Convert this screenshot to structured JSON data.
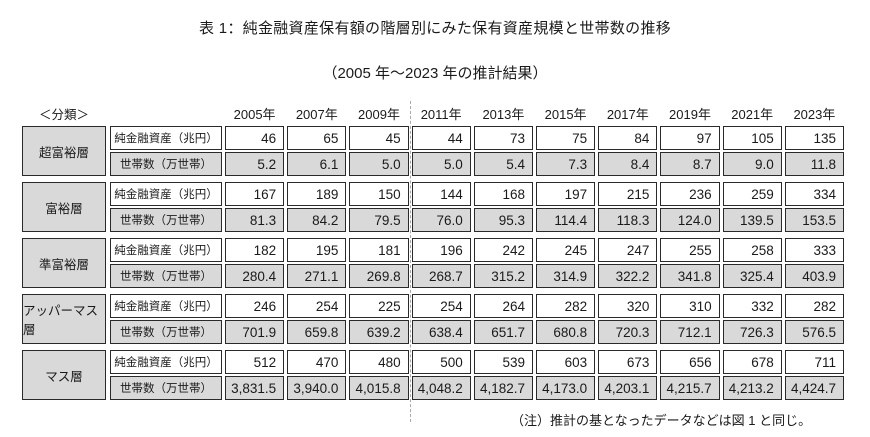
{
  "page": {
    "title": "表 1：純金融資産保有額の階層別にみた保有資産規模と世帯数の推移",
    "subtitle": "（2005 年～2023 年の推計結果）",
    "classification_label": "＜分類＞",
    "note": "（注）推計の基となったデータなどは図 1 と同じ。"
  },
  "colors": {
    "cell_gray": "#d9d9d9",
    "border": "#2a2a2a"
  },
  "table": {
    "years": [
      "2005年",
      "2007年",
      "2009年",
      "2011年",
      "2013年",
      "2015年",
      "2017年",
      "2019年",
      "2021年",
      "2023年"
    ],
    "row_labels": {
      "assets": "純金融資産（兆円）",
      "households": "世帯数（万世帯）"
    },
    "groups": [
      {
        "name": "超富裕層",
        "assets": [
          "46",
          "65",
          "45",
          "44",
          "73",
          "75",
          "84",
          "97",
          "105",
          "135"
        ],
        "households": [
          "5.2",
          "6.1",
          "5.0",
          "5.0",
          "5.4",
          "7.3",
          "8.4",
          "8.7",
          "9.0",
          "11.8"
        ]
      },
      {
        "name": "富裕層",
        "assets": [
          "167",
          "189",
          "150",
          "144",
          "168",
          "197",
          "215",
          "236",
          "259",
          "334"
        ],
        "households": [
          "81.3",
          "84.2",
          "79.5",
          "76.0",
          "95.3",
          "114.4",
          "118.3",
          "124.0",
          "139.5",
          "153.5"
        ]
      },
      {
        "name": "準富裕層",
        "assets": [
          "182",
          "195",
          "181",
          "196",
          "242",
          "245",
          "247",
          "255",
          "258",
          "333"
        ],
        "households": [
          "280.4",
          "271.1",
          "269.8",
          "268.7",
          "315.2",
          "314.9",
          "322.2",
          "341.8",
          "325.4",
          "403.9"
        ]
      },
      {
        "name": "アッパーマス層",
        "assets": [
          "246",
          "254",
          "225",
          "254",
          "264",
          "282",
          "320",
          "310",
          "332",
          "282"
        ],
        "households": [
          "701.9",
          "659.8",
          "639.2",
          "638.4",
          "651.7",
          "680.8",
          "720.3",
          "712.1",
          "726.3",
          "576.5"
        ]
      },
      {
        "name": "マス層",
        "assets": [
          "512",
          "470",
          "480",
          "500",
          "539",
          "603",
          "673",
          "656",
          "678",
          "711"
        ],
        "households": [
          "3,831.5",
          "3,940.0",
          "4,015.8",
          "4,048.2",
          "4,182.7",
          "4,173.0",
          "4,203.1",
          "4,215.7",
          "4,213.2",
          "4,424.7"
        ]
      }
    ]
  }
}
